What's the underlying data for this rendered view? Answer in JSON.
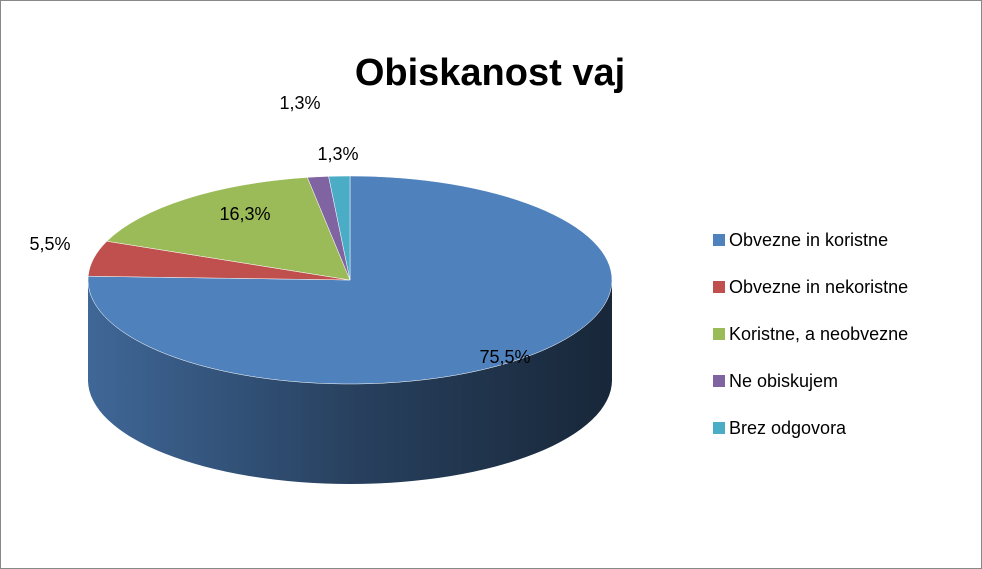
{
  "chart_data": {
    "type": "pie",
    "title": "Obiskanost vaj",
    "categories": [
      "Obvezne in koristne",
      "Obvezne in nekoristne",
      "Koristne, a neobvezne",
      "Ne obiskujem",
      "Brez odgovora"
    ],
    "values": [
      75.5,
      5.5,
      16.3,
      1.3,
      1.3
    ],
    "value_labels": [
      "75,5%",
      "5,5%",
      "16,3%",
      "1,3%",
      "1,3%"
    ],
    "colors": [
      "#4f81bd",
      "#c0504d",
      "#9bbb59",
      "#8064a2",
      "#4bacc6"
    ],
    "legend": "right"
  }
}
